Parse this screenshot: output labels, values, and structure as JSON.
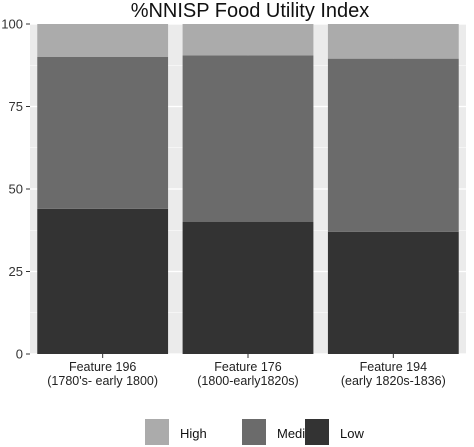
{
  "chart_data": {
    "type": "bar",
    "stacked": true,
    "title": "%NNISP Food Utility Index",
    "xlabel": "",
    "ylabel": "",
    "ylim": [
      0,
      100
    ],
    "yticks": [
      "0",
      "25",
      "50",
      "75",
      "100"
    ],
    "categories": [
      [
        "Feature 196",
        "(1780's- early 1800)"
      ],
      [
        "Feature 176",
        "(1800-early1820s)"
      ],
      [
        "Feature 194",
        "(early 1820s-1836)"
      ]
    ],
    "series": [
      {
        "name": "Low",
        "color": "#333333",
        "values": [
          44,
          40,
          37
        ]
      },
      {
        "name": "Medium",
        "color": "#6b6b6b",
        "values": [
          46,
          50.5,
          52.5
        ]
      },
      {
        "name": "High",
        "color": "#ababab",
        "values": [
          10,
          9.5,
          10.5
        ]
      }
    ],
    "legend": {
      "position": "bottom",
      "order": [
        "High",
        "Medium",
        "Low"
      ]
    },
    "grid": true,
    "panel_background": "#ebebeb",
    "grid_color": "#ffffff"
  }
}
